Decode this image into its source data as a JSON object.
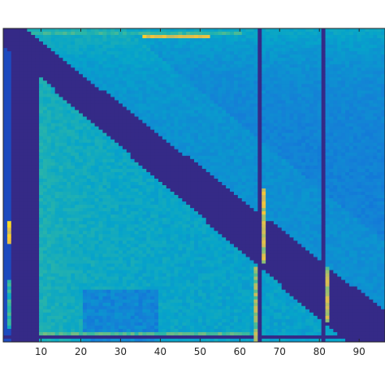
{
  "chart_data": {
    "type": "heatmap",
    "title": "",
    "xlabel": "",
    "ylabel": "",
    "colormap": "parula",
    "colormap_stops": [
      "#352a87",
      "#0f5cdd",
      "#1481d6",
      "#06a4ca",
      "#2eb7a4",
      "#87bf77",
      "#d1bb59",
      "#fec832",
      "#f9fb0e"
    ],
    "background_color": "#352a87",
    "frame_color": "#262626",
    "grid": false,
    "x_range": [
      1,
      96
    ],
    "y_range": [
      1,
      96
    ],
    "y_direction": "top-to-bottom",
    "xticks": [
      10,
      20,
      30,
      40,
      50,
      60,
      70,
      80,
      90
    ],
    "xtick_labels": [
      "10",
      "20",
      "30",
      "40",
      "50",
      "60",
      "70",
      "80",
      "90"
    ],
    "yticks_labels_visible": false,
    "value_range": [
      0,
      1
    ],
    "dark_columns": [
      3,
      4,
      5,
      6,
      7,
      8,
      9,
      65,
      81
    ],
    "dark_rows": [
      95
    ],
    "bright_column_segments": [
      {
        "x": 2,
        "rows": [
          78,
          92
        ],
        "value": 0.55
      },
      {
        "x": 2,
        "rows": [
          60,
          66
        ],
        "value": 0.95
      },
      {
        "x": 64,
        "rows": [
          74,
          96
        ],
        "value": 0.75
      },
      {
        "x": 66,
        "rows": [
          50,
          72
        ],
        "value": 0.85
      },
      {
        "x": 82,
        "rows": [
          74,
          90
        ],
        "value": 0.8
      }
    ],
    "bright_row_segments": [
      {
        "y": 2,
        "cols": [
          8,
          60
        ],
        "value": 0.55
      },
      {
        "y": 3,
        "cols": [
          36,
          52
        ],
        "value": 0.9
      },
      {
        "y": 94,
        "cols": [
          10,
          62
        ],
        "value": 0.6
      }
    ]
  }
}
